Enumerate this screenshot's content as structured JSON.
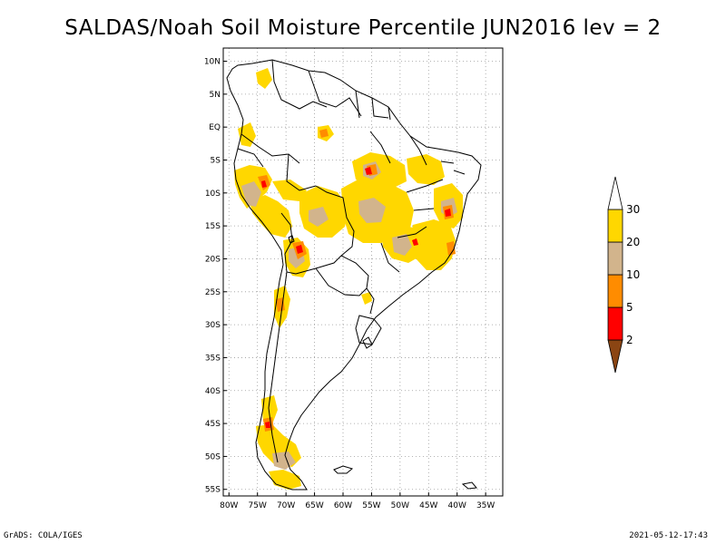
{
  "title": "SALDAS/Noah Soil Moisture Percentile JUN2016 lev = 2",
  "footer": {
    "left": "GrADS: COLA/IGES",
    "right": "2021-05-12-17:43"
  },
  "map": {
    "lat_labels": [
      "10N",
      "5N",
      "EQ",
      "5S",
      "10S",
      "15S",
      "20S",
      "25S",
      "30S",
      "35S",
      "40S",
      "45S",
      "50S",
      "55S"
    ],
    "lat_values": [
      10,
      5,
      0,
      -5,
      -10,
      -15,
      -20,
      -25,
      -30,
      -35,
      -40,
      -45,
      -50,
      -55
    ],
    "lon_labels": [
      "80W",
      "75W",
      "70W",
      "65W",
      "60W",
      "55W",
      "50W",
      "45W",
      "40W",
      "35W"
    ],
    "lon_values": [
      -80,
      -75,
      -70,
      -65,
      -60,
      -55,
      -50,
      -45,
      -40,
      -35
    ],
    "lon_range": [
      -81,
      -32
    ],
    "lat_range": [
      12,
      -56
    ],
    "grid": true
  },
  "legend": {
    "bins": [
      {
        "color": "#8b4513",
        "label": "2"
      },
      {
        "color": "#ff0000",
        "label": "5"
      },
      {
        "color": "#ff8c00",
        "label": "10"
      },
      {
        "color": "#d2b48c",
        "label": "20"
      },
      {
        "color": "#ffd700",
        "label": "30"
      },
      {
        "color": "#ffffff",
        "label": ""
      }
    ]
  },
  "colors": {
    "coast": "#000000",
    "grid": "#9a9a9a"
  }
}
